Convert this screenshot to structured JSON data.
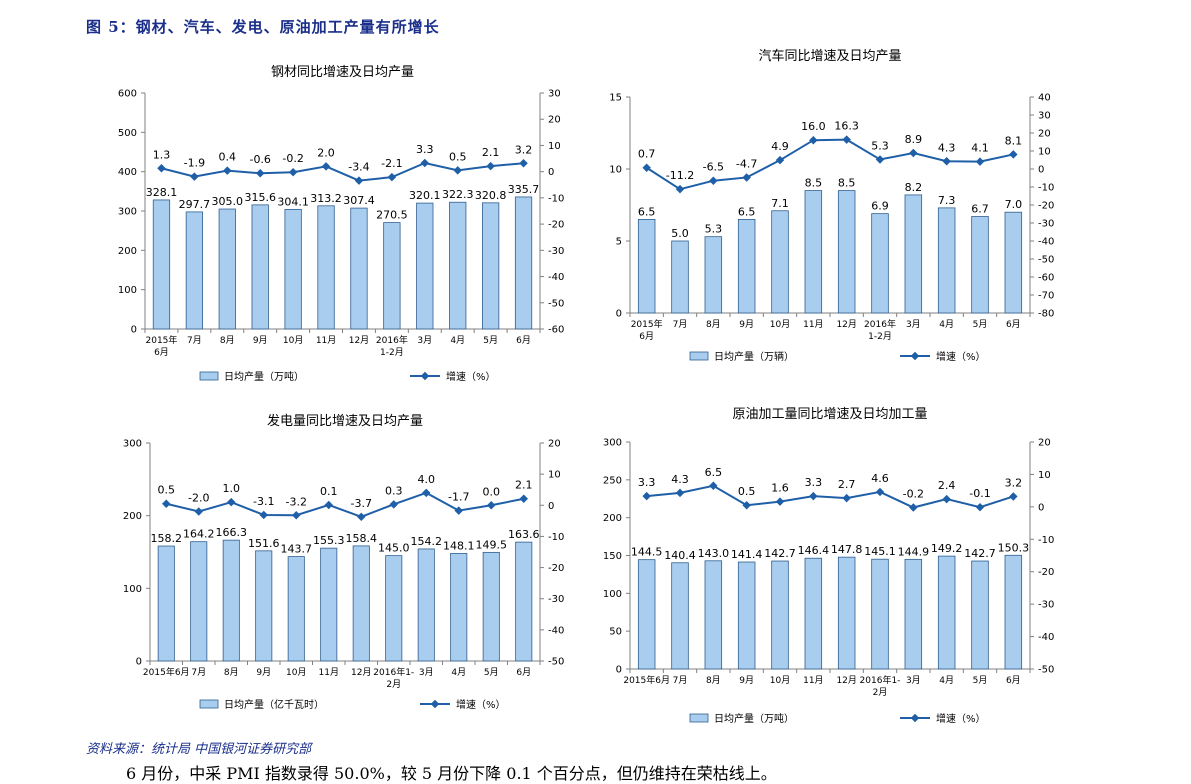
{
  "figure": {
    "title": "图 5：钢材、汽车、发电、原油加工产量有所增长",
    "source": "资料来源：统计局 中国银河证券研究部",
    "body_text": "6 月份，中采 PMI 指数录得 50.0%，较 5 月份下降 0.1 个百分点，但仍维持在荣枯线上。"
  },
  "colors": {
    "bar_fill": "#a9cdee",
    "bar_stroke": "#2f5f8f",
    "line": "#1f5fa8"
  },
  "chart_data": [
    {
      "type": "bar+line",
      "title": "钢材同比增速及日均产量",
      "categories": [
        "2015年\n6月",
        "7月",
        "8月",
        "9月",
        "10月",
        "11月",
        "12月",
        "2016年\n1-2月",
        "3月",
        "4月",
        "5月",
        "6月"
      ],
      "series": [
        {
          "name": "日均产量（万吨）",
          "type": "bar",
          "axis": "left",
          "values": [
            328.1,
            297.7,
            305.0,
            315.6,
            304.1,
            313.2,
            307.4,
            270.5,
            320.1,
            322.3,
            320.8,
            335.7
          ]
        },
        {
          "name": "增速（%）",
          "type": "line",
          "axis": "right",
          "values": [
            1.3,
            -1.9,
            0.4,
            -0.6,
            -0.2,
            2.0,
            -3.4,
            -2.1,
            3.3,
            0.5,
            2.1,
            3.2
          ]
        }
      ],
      "ylim_left": [
        0,
        600
      ],
      "yticks_left": [
        0,
        100,
        200,
        300,
        400,
        500,
        600
      ],
      "ylim_right": [
        -60,
        30
      ],
      "yticks_right": [
        -60,
        -50,
        -40,
        -30,
        -20,
        -10,
        0,
        10,
        20,
        30
      ],
      "legend": "bottom",
      "grid": false
    },
    {
      "type": "bar+line",
      "title": "汽车同比增速及日均产量",
      "categories": [
        "2015年\n6月",
        "7月",
        "8月",
        "9月",
        "10月",
        "11月",
        "12月",
        "2016年\n1-2月",
        "3月",
        "4月",
        "5月",
        "6月"
      ],
      "series": [
        {
          "name": "日均产量（万辆）",
          "type": "bar",
          "axis": "left",
          "values": [
            6.5,
            5.0,
            5.3,
            6.5,
            7.1,
            8.5,
            8.5,
            6.9,
            8.2,
            7.3,
            6.7,
            7.0
          ]
        },
        {
          "name": "增速（%）",
          "type": "line",
          "axis": "right",
          "values": [
            0.7,
            -11.2,
            -6.5,
            -4.7,
            4.9,
            16.0,
            16.3,
            5.3,
            8.9,
            4.3,
            4.1,
            8.1
          ]
        }
      ],
      "ylim_left": [
        0,
        15
      ],
      "yticks_left": [
        0,
        5,
        10,
        15
      ],
      "ylim_right": [
        -80,
        40
      ],
      "yticks_right": [
        -80,
        -70,
        -60,
        -50,
        -40,
        -30,
        -20,
        -10,
        0,
        10,
        20,
        30,
        40
      ],
      "legend": "bottom",
      "grid": false
    },
    {
      "type": "bar+line",
      "title": "发电量同比增速及日均产量",
      "categories": [
        "2015年6月",
        "7月",
        "8月",
        "9月",
        "10月",
        "11月",
        "12月",
        "2016年1-\n2月",
        "3月",
        "4月",
        "5月",
        "6月"
      ],
      "series": [
        {
          "name": "日均产量（亿千瓦时）",
          "type": "bar",
          "axis": "left",
          "values": [
            158.2,
            164.2,
            166.3,
            151.6,
            143.7,
            155.3,
            158.4,
            145.0,
            154.2,
            148.1,
            149.5,
            163.6
          ]
        },
        {
          "name": "增速（%）",
          "type": "line",
          "axis": "right",
          "values": [
            0.5,
            -2.0,
            1.0,
            -3.1,
            -3.2,
            0.1,
            -3.7,
            0.3,
            4.0,
            -1.7,
            0.0,
            2.1
          ]
        }
      ],
      "ylim_left": [
        0,
        300
      ],
      "yticks_left": [
        0,
        100,
        200,
        300
      ],
      "ylim_right": [
        -50,
        20
      ],
      "yticks_right": [
        -50,
        -40,
        -30,
        -20,
        -10,
        0,
        10,
        20
      ],
      "legend": "bottom",
      "grid": false
    },
    {
      "type": "bar+line",
      "title": "原油加工量同比增速及日均加工量",
      "categories": [
        "2015年6月",
        "7月",
        "8月",
        "9月",
        "10月",
        "11月",
        "12月",
        "2016年1-\n2月",
        "3月",
        "4月",
        "5月",
        "6月"
      ],
      "series": [
        {
          "name": "日均产量（万吨）",
          "type": "bar",
          "axis": "left",
          "values": [
            144.5,
            140.4,
            143.0,
            141.4,
            142.7,
            146.4,
            147.8,
            145.1,
            144.9,
            149.2,
            142.7,
            150.3
          ]
        },
        {
          "name": "增速（%）",
          "type": "line",
          "axis": "right",
          "values": [
            3.3,
            4.3,
            6.5,
            0.5,
            1.6,
            3.3,
            2.7,
            4.6,
            -0.2,
            2.4,
            -0.1,
            3.2
          ]
        }
      ],
      "ylim_left": [
        0,
        300
      ],
      "yticks_left": [
        0,
        50,
        100,
        150,
        200,
        250,
        300
      ],
      "ylim_right": [
        -50,
        20
      ],
      "yticks_right": [
        -50,
        -40,
        -30,
        -20,
        -10,
        0,
        10,
        20
      ],
      "legend": "bottom",
      "grid": false
    }
  ]
}
